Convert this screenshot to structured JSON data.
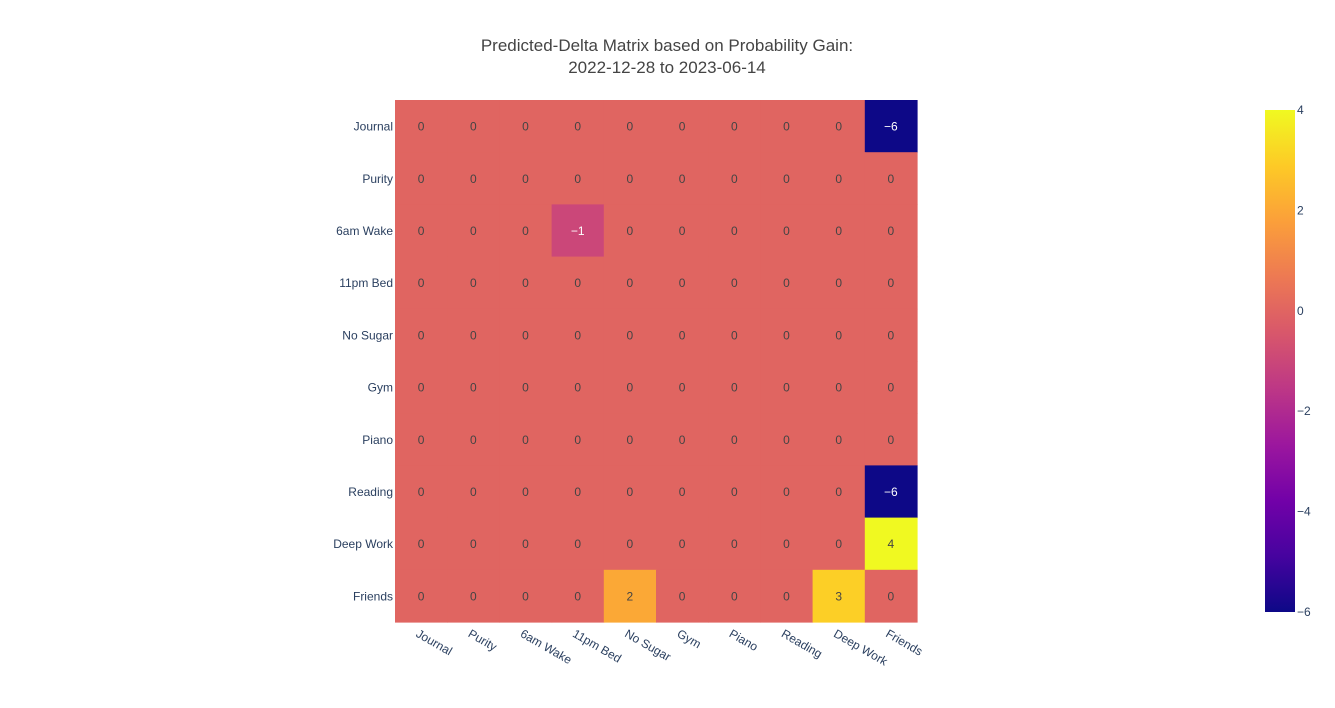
{
  "chart_data": {
    "type": "heatmap",
    "title_lines": [
      "Predicted-Delta Matrix based on Probability Gain:",
      "2022-12-28 to 2023-06-14"
    ],
    "x_categories": [
      "Journal",
      "Purity",
      "6am Wake",
      "11pm Bed",
      "No Sugar",
      "Gym",
      "Piano",
      "Reading",
      "Deep Work",
      "Friends"
    ],
    "y_categories": [
      "Journal",
      "Purity",
      "6am Wake",
      "11pm Bed",
      "No Sugar",
      "Gym",
      "Piano",
      "Reading",
      "Deep Work",
      "Friends"
    ],
    "z": [
      [
        0,
        0,
        0,
        0,
        0,
        0,
        0,
        0,
        0,
        -6
      ],
      [
        0,
        0,
        0,
        0,
        0,
        0,
        0,
        0,
        0,
        0
      ],
      [
        0,
        0,
        0,
        -1,
        0,
        0,
        0,
        0,
        0,
        0
      ],
      [
        0,
        0,
        0,
        0,
        0,
        0,
        0,
        0,
        0,
        0
      ],
      [
        0,
        0,
        0,
        0,
        0,
        0,
        0,
        0,
        0,
        0
      ],
      [
        0,
        0,
        0,
        0,
        0,
        0,
        0,
        0,
        0,
        0
      ],
      [
        0,
        0,
        0,
        0,
        0,
        0,
        0,
        0,
        0,
        0
      ],
      [
        0,
        0,
        0,
        0,
        0,
        0,
        0,
        0,
        0,
        -6
      ],
      [
        0,
        0,
        0,
        0,
        0,
        0,
        0,
        0,
        0,
        4
      ],
      [
        0,
        0,
        0,
        0,
        2,
        0,
        0,
        0,
        3,
        0
      ]
    ],
    "zmin": -6,
    "zmax": 4,
    "colorscale": "plasma",
    "colorbar_ticks": [
      4,
      2,
      0,
      -2,
      -4,
      -6
    ],
    "colors": {
      "text": "#2a3f5f",
      "title": "#444444"
    }
  }
}
